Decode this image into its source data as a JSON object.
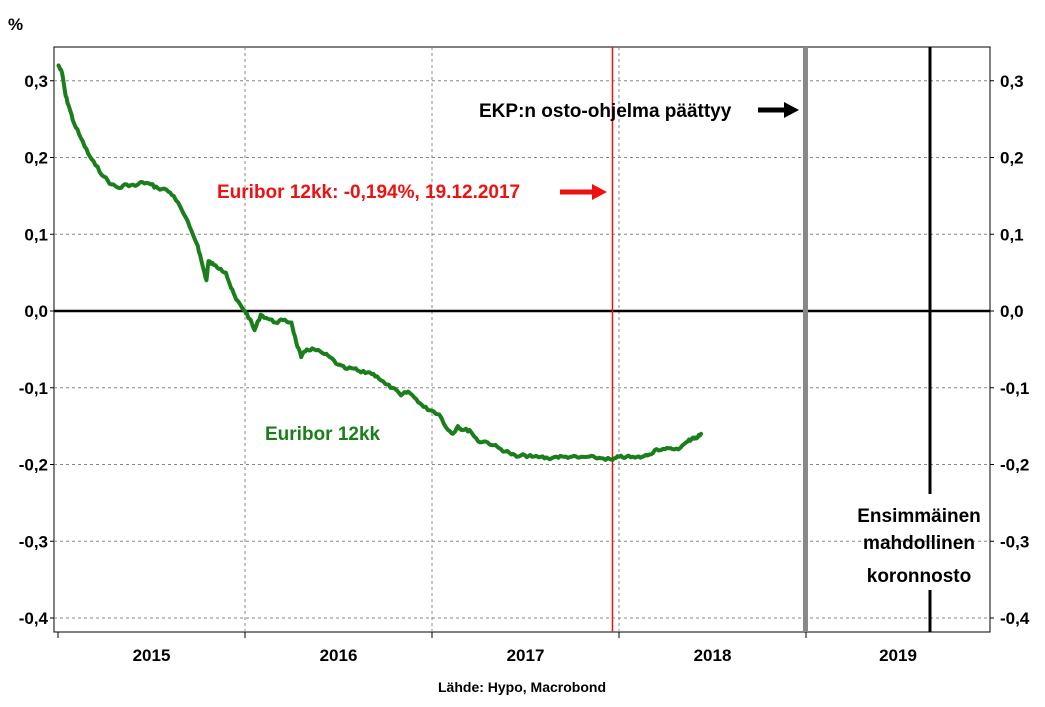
{
  "chart_data": {
    "type": "line",
    "ylabel": "%",
    "ylim": [
      -0.42,
      0.34
    ],
    "yticks": [
      "0,3",
      "0,2",
      "0,1",
      "0,0",
      "-0,1",
      "-0,2",
      "-0,3",
      "-0,4"
    ],
    "xticks": [
      "2015",
      "2016",
      "2017",
      "2018",
      "2019"
    ],
    "source": "Lähde: Hypo, Macrobond",
    "grid": true,
    "series": [
      {
        "name": "Euribor 12kk",
        "color": "#1a7f1a",
        "points": [
          [
            "2015-01-02",
            0.32
          ],
          [
            "2015-01-09",
            0.31
          ],
          [
            "2015-01-16",
            0.28
          ],
          [
            "2015-01-23",
            0.265
          ],
          [
            "2015-02-01",
            0.245
          ],
          [
            "2015-02-15",
            0.225
          ],
          [
            "2015-03-01",
            0.205
          ],
          [
            "2015-03-15",
            0.19
          ],
          [
            "2015-04-01",
            0.175
          ],
          [
            "2015-04-15",
            0.165
          ],
          [
            "2015-05-01",
            0.16
          ],
          [
            "2015-05-15",
            0.165
          ],
          [
            "2015-06-01",
            0.163
          ],
          [
            "2015-06-15",
            0.168
          ],
          [
            "2015-07-01",
            0.165
          ],
          [
            "2015-07-15",
            0.16
          ],
          [
            "2015-08-01",
            0.158
          ],
          [
            "2015-08-15",
            0.15
          ],
          [
            "2015-09-01",
            0.13
          ],
          [
            "2015-09-15",
            0.11
          ],
          [
            "2015-10-01",
            0.085
          ],
          [
            "2015-10-10",
            0.06
          ],
          [
            "2015-10-18",
            0.04
          ],
          [
            "2015-10-22",
            0.065
          ],
          [
            "2015-11-01",
            0.06
          ],
          [
            "2015-11-15",
            0.055
          ],
          [
            "2015-11-25",
            0.05
          ],
          [
            "2015-12-05",
            0.03
          ],
          [
            "2015-12-15",
            0.015
          ],
          [
            "2016-01-01",
            0.0
          ],
          [
            "2016-01-10",
            -0.01
          ],
          [
            "2016-01-20",
            -0.025
          ],
          [
            "2016-02-01",
            -0.005
          ],
          [
            "2016-02-15",
            -0.01
          ],
          [
            "2016-03-01",
            -0.015
          ],
          [
            "2016-03-15",
            -0.012
          ],
          [
            "2016-04-01",
            -0.015
          ],
          [
            "2016-04-10",
            -0.04
          ],
          [
            "2016-04-20",
            -0.06
          ],
          [
            "2016-05-01",
            -0.05
          ],
          [
            "2016-05-15",
            -0.05
          ],
          [
            "2016-06-01",
            -0.055
          ],
          [
            "2016-06-15",
            -0.06
          ],
          [
            "2016-07-01",
            -0.07
          ],
          [
            "2016-07-15",
            -0.075
          ],
          [
            "2016-08-01",
            -0.075
          ],
          [
            "2016-08-15",
            -0.08
          ],
          [
            "2016-09-01",
            -0.08
          ],
          [
            "2016-09-15",
            -0.085
          ],
          [
            "2016-10-01",
            -0.095
          ],
          [
            "2016-10-15",
            -0.1
          ],
          [
            "2016-11-01",
            -0.11
          ],
          [
            "2016-11-15",
            -0.105
          ],
          [
            "2016-12-01",
            -0.115
          ],
          [
            "2016-12-15",
            -0.125
          ],
          [
            "2017-01-01",
            -0.13
          ],
          [
            "2017-01-15",
            -0.135
          ],
          [
            "2017-02-01",
            -0.155
          ],
          [
            "2017-02-10",
            -0.16
          ],
          [
            "2017-02-20",
            -0.15
          ],
          [
            "2017-03-01",
            -0.155
          ],
          [
            "2017-03-15",
            -0.155
          ],
          [
            "2017-04-01",
            -0.17
          ],
          [
            "2017-04-15",
            -0.17
          ],
          [
            "2017-05-01",
            -0.175
          ],
          [
            "2017-05-15",
            -0.18
          ],
          [
            "2017-06-01",
            -0.185
          ],
          [
            "2017-06-15",
            -0.19
          ],
          [
            "2017-07-01",
            -0.188
          ],
          [
            "2017-07-15",
            -0.19
          ],
          [
            "2017-08-01",
            -0.19
          ],
          [
            "2017-08-15",
            -0.192
          ],
          [
            "2017-09-01",
            -0.19
          ],
          [
            "2017-09-15",
            -0.19
          ],
          [
            "2017-10-01",
            -0.19
          ],
          [
            "2017-10-15",
            -0.191
          ],
          [
            "2017-11-01",
            -0.19
          ],
          [
            "2017-11-15",
            -0.191
          ],
          [
            "2017-12-01",
            -0.192
          ],
          [
            "2017-12-19",
            -0.194
          ],
          [
            "2018-01-01",
            -0.19
          ],
          [
            "2018-01-15",
            -0.19
          ],
          [
            "2018-02-01",
            -0.191
          ],
          [
            "2018-02-15",
            -0.19
          ],
          [
            "2018-03-01",
            -0.187
          ],
          [
            "2018-03-15",
            -0.18
          ],
          [
            "2018-04-01",
            -0.18
          ],
          [
            "2018-04-15",
            -0.18
          ],
          [
            "2018-05-01",
            -0.178
          ],
          [
            "2018-05-15",
            -0.17
          ],
          [
            "2018-05-25",
            -0.165
          ],
          [
            "2018-06-01",
            -0.166
          ],
          [
            "2018-06-10",
            -0.16
          ]
        ]
      }
    ],
    "series_label": "Euribor 12kk",
    "annotations": {
      "euribor_note": "Euribor 12kk: -0,194%, 19.12.2017",
      "ekp_note": "EKP:n osto-ohjelma päättyy",
      "rate_hike_line1": "Ensimmäinen",
      "rate_hike_line2": "mahdollinen",
      "rate_hike_line3": "koronnosto"
    },
    "colors": {
      "line": "#1a7f1a",
      "highlight": "#ee1111",
      "ekp_marker": "#888888",
      "zero_line": "#000000"
    }
  }
}
